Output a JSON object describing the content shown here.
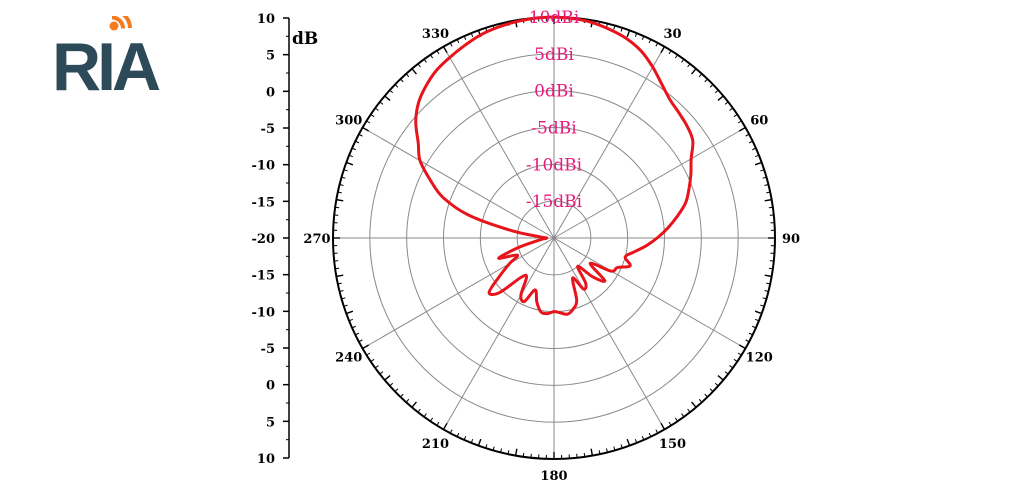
{
  "logo": {
    "text": "RIA",
    "text_color": "#2d4a58",
    "accent_color": "#f47a20"
  },
  "chart_data": {
    "type": "polar-line",
    "unit_label": "dB",
    "r_range": [
      -20,
      10
    ],
    "ring_values": [
      -15,
      -10,
      -5,
      0,
      5,
      10
    ],
    "ring_labels": [
      "-15dBi",
      "-10dBi",
      "-5dBi",
      "0dBi",
      "5dBi",
      "10dBi"
    ],
    "angle_ticks": [
      0,
      30,
      60,
      90,
      120,
      150,
      180,
      210,
      240,
      270,
      300,
      330
    ],
    "angle_labels": [
      "",
      "30",
      "60",
      "90",
      "120",
      "150",
      "180",
      "210",
      "240",
      "270",
      "300",
      "330"
    ],
    "side_axis_labels": [
      "10",
      "5",
      "0",
      "-5",
      "-10",
      "-15",
      "-20",
      "-15",
      "-10",
      "-5",
      "0",
      "5",
      "10"
    ],
    "grid": true,
    "line_color": "#e8141c",
    "grid_color": "#8a8a8a",
    "ring_label_color": "#e8197a",
    "series": [
      {
        "angles": [
          0,
          5,
          10,
          15,
          20,
          25,
          30,
          35,
          40,
          45,
          50,
          55,
          60,
          65,
          70,
          75,
          80,
          85,
          90,
          95,
          100,
          105,
          110,
          115,
          120,
          125,
          130,
          135,
          140,
          145,
          150,
          155,
          160,
          165,
          170,
          175,
          180,
          185,
          190,
          195,
          200,
          205,
          210,
          215,
          220,
          225,
          230,
          235,
          240,
          245,
          250,
          255,
          260,
          265,
          270,
          275,
          280,
          285,
          290,
          295,
          300,
          305,
          310,
          315,
          320,
          325,
          330,
          335,
          340,
          345,
          350,
          355,
          360
        ],
        "values": [
          10,
          9.9,
          9.7,
          9.3,
          8.8,
          8.0,
          6.8,
          5.5,
          4.5,
          4.0,
          3.6,
          3.0,
          1.5,
          0.5,
          -0.5,
          -1.5,
          -3.0,
          -4.5,
          -6.0,
          -7.5,
          -9.0,
          -10.0,
          -9.0,
          -10.5,
          -11.0,
          -14.0,
          -11.0,
          -12.5,
          -15.0,
          -12.5,
          -12.0,
          -14.0,
          -11.0,
          -10.0,
          -9.5,
          -9.8,
          -10.0,
          -9.7,
          -9.8,
          -11.0,
          -12.5,
          -10.5,
          -11.0,
          -13.5,
          -13.0,
          -9.5,
          -8.5,
          -11.0,
          -13.0,
          -14.5,
          -12.0,
          -15.0,
          -17.5,
          -18.5,
          -19.0,
          -18.0,
          -14.0,
          -8.0,
          -4.0,
          -1.5,
          1.0,
          2.5,
          4.5,
          6.0,
          7.0,
          7.8,
          8.3,
          8.8,
          9.3,
          9.6,
          9.8,
          9.95,
          10
        ]
      }
    ]
  }
}
